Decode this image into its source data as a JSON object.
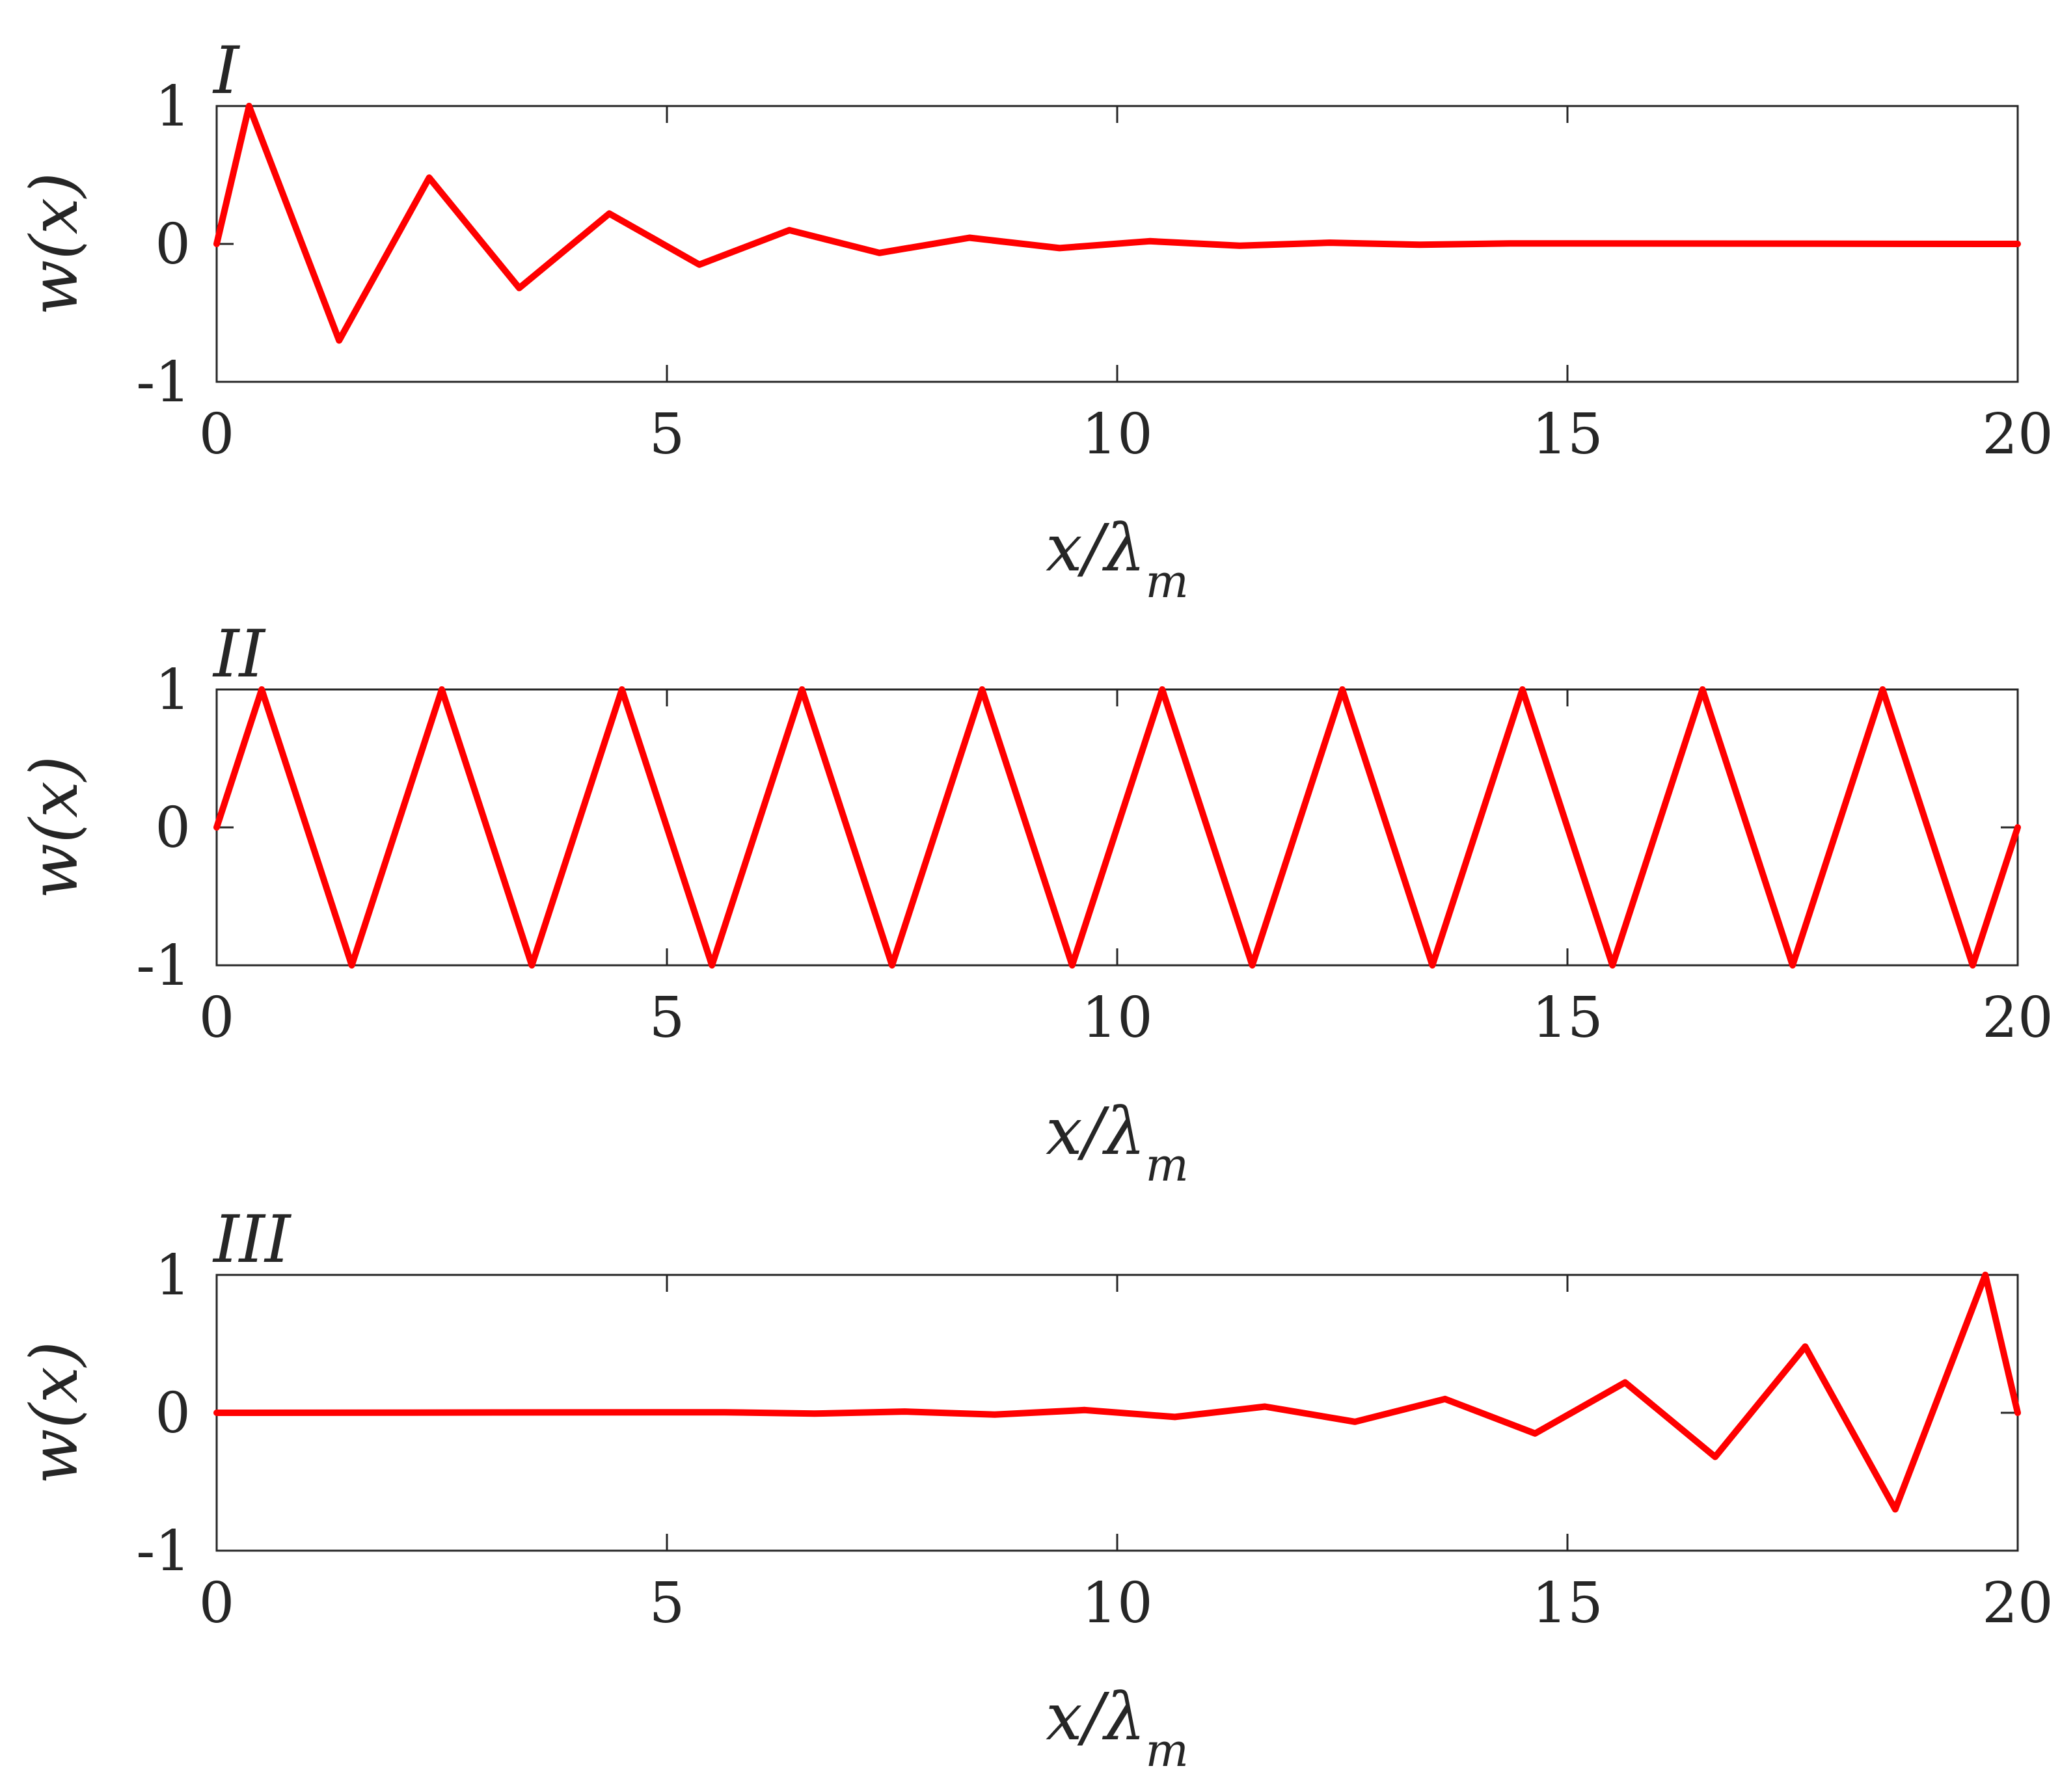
{
  "colors": {
    "series": "#ff0000",
    "axes": "#262626"
  },
  "chart_data": [
    {
      "type": "line",
      "panel_label": "I",
      "xlabel": "x/λ",
      "xlabel_sub": "m",
      "ylabel": "w(x)",
      "xlim": [
        0,
        20
      ],
      "ylim": [
        -1,
        1
      ],
      "xticks": [
        0,
        5,
        10,
        15,
        20
      ],
      "yticks": [
        -1,
        0,
        1
      ],
      "xtick_labels": [
        "0",
        "5",
        "10",
        "15",
        "20"
      ],
      "ytick_labels": [
        "-1",
        "0",
        "1"
      ],
      "grid": false,
      "series": [
        {
          "x": [
            0,
            0.36,
            1.36,
            2.36,
            3.36,
            4.36,
            5.36,
            6.36,
            7.36,
            8.36,
            9.36,
            10.36,
            11.36,
            12.36,
            13.36,
            14.36,
            20
          ],
          "y": [
            0,
            1.0,
            -0.7,
            0.48,
            -0.32,
            0.22,
            -0.15,
            0.1,
            -0.065,
            0.045,
            -0.03,
            0.02,
            -0.013,
            0.009,
            -0.006,
            0.004,
            0
          ]
        }
      ]
    },
    {
      "type": "line",
      "panel_label": "II",
      "xlabel": "x/λ",
      "xlabel_sub": "m",
      "ylabel": "w(x)",
      "xlim": [
        0,
        20
      ],
      "ylim": [
        -1,
        1
      ],
      "xticks": [
        0,
        5,
        10,
        15,
        20
      ],
      "yticks": [
        -1,
        0,
        1
      ],
      "xtick_labels": [
        "0",
        "5",
        "10",
        "15",
        "20"
      ],
      "ytick_labels": [
        "-1",
        "0",
        "1"
      ],
      "grid": false,
      "series": [
        {
          "x": [
            0,
            0.5,
            1.5,
            2.5,
            3.5,
            4.5,
            5.5,
            6.5,
            7.5,
            8.5,
            9.5,
            10.5,
            11.5,
            12.5,
            13.5,
            14.5,
            15.5,
            16.5,
            17.5,
            18.5,
            19.5,
            20
          ],
          "y": [
            0,
            1,
            -1,
            1,
            -1,
            1,
            -1,
            1,
            -1,
            1,
            -1,
            1,
            -1,
            1,
            -1,
            1,
            -1,
            1,
            -1,
            1,
            -1,
            0
          ]
        }
      ]
    },
    {
      "type": "line",
      "panel_label": "III",
      "xlabel": "x/λ",
      "xlabel_sub": "m",
      "ylabel": "w(x)",
      "xlim": [
        0,
        20
      ],
      "ylim": [
        -1,
        1
      ],
      "xticks": [
        0,
        5,
        10,
        15,
        20
      ],
      "yticks": [
        -1,
        0,
        1
      ],
      "xtick_labels": [
        "0",
        "5",
        "10",
        "15",
        "20"
      ],
      "ytick_labels": [
        "-1",
        "0",
        "1"
      ],
      "grid": false,
      "series": [
        {
          "x": [
            0,
            5.64,
            6.64,
            7.64,
            8.64,
            9.64,
            10.64,
            11.64,
            12.64,
            13.64,
            14.64,
            15.64,
            16.64,
            17.64,
            18.64,
            19.64,
            20
          ],
          "y": [
            0,
            0.004,
            -0.006,
            0.009,
            -0.013,
            0.02,
            -0.03,
            0.045,
            -0.065,
            0.1,
            -0.15,
            0.22,
            -0.32,
            0.48,
            -0.7,
            1.0,
            0
          ]
        }
      ]
    }
  ]
}
